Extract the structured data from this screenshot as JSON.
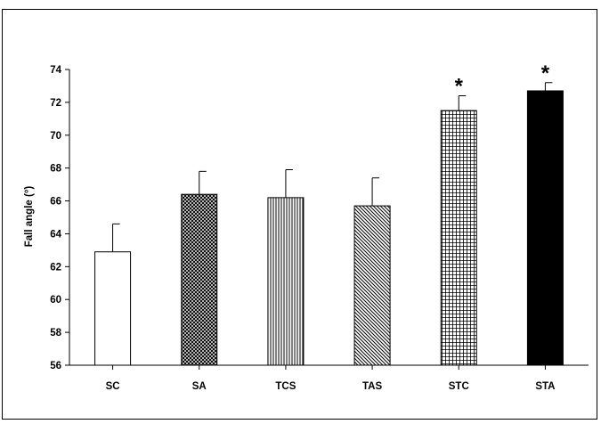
{
  "chart_data": {
    "type": "bar",
    "ylabel": "Fall angle (°)",
    "xlabel": "",
    "ylim": [
      56,
      74
    ],
    "yticks": [
      56,
      58,
      60,
      62,
      64,
      66,
      68,
      70,
      72,
      74
    ],
    "grid": false,
    "categories": [
      "SC",
      "SA",
      "TCS",
      "TAS",
      "STC",
      "STA"
    ],
    "values": [
      62.9,
      66.4,
      66.2,
      65.7,
      71.5,
      72.7
    ],
    "errors": [
      1.7,
      1.4,
      1.7,
      1.7,
      0.9,
      0.5
    ],
    "patterns": [
      "white",
      "crosshatch-dense",
      "vertical-lines",
      "diagonal-lines",
      "grid",
      "solid-black"
    ],
    "significance": [
      "",
      "",
      "",
      "",
      "*",
      "*"
    ]
  }
}
